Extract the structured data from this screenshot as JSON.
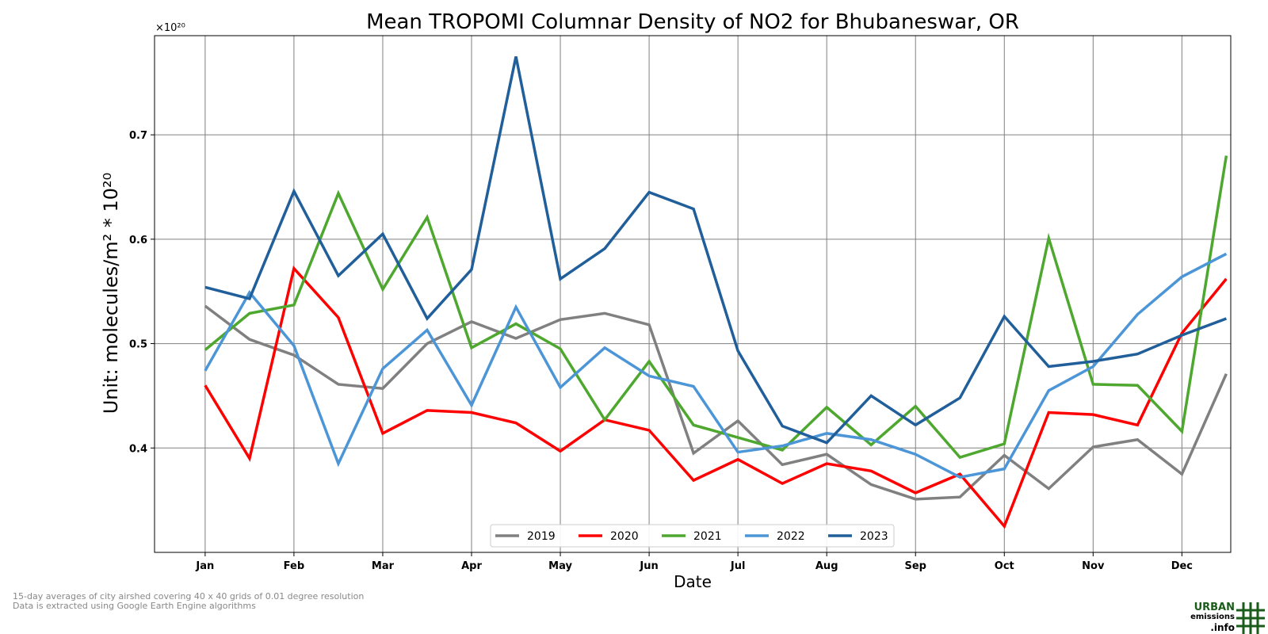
{
  "chart_data": {
    "type": "line",
    "title": "Mean TROPOMI Columnar Density of NO2 for Bhubaneswar, OR",
    "xlabel": "Date",
    "ylabel": "Unit: molecules/m² * 10²⁰",
    "y_multiplier_label": "×10²⁰",
    "ylim": [
      0.3,
      0.795
    ],
    "yticks": [
      "0.4",
      "0.5",
      "0.6",
      "0.7"
    ],
    "ytick_values": [
      0.4,
      0.5,
      0.6,
      0.7
    ],
    "xticks": [
      "Jan",
      "Feb",
      "Mar",
      "Apr",
      "May",
      "Jun",
      "Jul",
      "Aug",
      "Sep",
      "Oct",
      "Nov",
      "Dec"
    ],
    "xlim": [
      0.43,
      12.55
    ],
    "x": [
      1,
      1.5,
      2,
      2.5,
      3,
      3.5,
      4,
      4.5,
      5,
      5.5,
      6,
      6.5,
      7,
      7.5,
      8,
      8.5,
      9,
      9.5,
      10,
      10.5,
      11,
      11.5,
      12,
      12.5
    ],
    "grid": true,
    "legend_position": "bottom-center",
    "series": [
      {
        "name": "2019",
        "color": "#808080",
        "values": [
          0.536,
          0.504,
          0.489,
          0.461,
          0.457,
          0.5,
          0.521,
          0.505,
          0.523,
          0.529,
          0.518,
          0.395,
          0.426,
          0.384,
          0.394,
          0.365,
          0.351,
          0.353,
          0.393,
          0.361,
          0.401,
          0.408,
          0.375,
          0.471
        ]
      },
      {
        "name": "2020",
        "color": "#ff0000",
        "values": [
          0.46,
          0.39,
          0.572,
          0.525,
          0.414,
          0.436,
          0.434,
          0.424,
          0.397,
          0.427,
          0.417,
          0.369,
          0.389,
          0.366,
          0.385,
          0.378,
          0.357,
          0.375,
          0.325,
          0.434,
          0.432,
          0.422,
          0.51,
          0.562
        ]
      },
      {
        "name": "2021",
        "color": "#4ea72e",
        "values": [
          0.494,
          0.529,
          0.537,
          0.644,
          0.552,
          0.621,
          0.496,
          0.519,
          0.495,
          0.427,
          0.483,
          0.422,
          0.41,
          0.398,
          0.439,
          0.403,
          0.44,
          0.391,
          0.404,
          0.601,
          0.461,
          0.46,
          0.416,
          0.68
        ]
      },
      {
        "name": "2022",
        "color": "#4c96d7",
        "values": [
          0.474,
          0.549,
          0.498,
          0.385,
          0.476,
          0.513,
          0.441,
          0.535,
          0.458,
          0.496,
          0.469,
          0.459,
          0.396,
          0.402,
          0.414,
          0.408,
          0.394,
          0.372,
          0.38,
          0.455,
          0.478,
          0.528,
          0.564,
          0.586
        ]
      },
      {
        "name": "2023",
        "color": "#215f9a",
        "values": [
          0.554,
          0.543,
          0.646,
          0.565,
          0.605,
          0.524,
          0.571,
          0.775,
          0.562,
          0.591,
          0.645,
          0.629,
          0.493,
          0.421,
          0.405,
          0.45,
          0.422,
          0.448,
          0.526,
          0.478,
          0.483,
          0.49,
          0.508,
          0.524
        ]
      }
    ]
  },
  "footnotes": [
    "15-day averages of city airshed covering 40 x 40 grids of 0.01 degree resolution",
    "Data is extracted using Google Earth Engine algorithms"
  ],
  "logo": {
    "line1": "URBAN",
    "line2": "emissions",
    "line3": ".info",
    "color": "#1a5c1a"
  }
}
